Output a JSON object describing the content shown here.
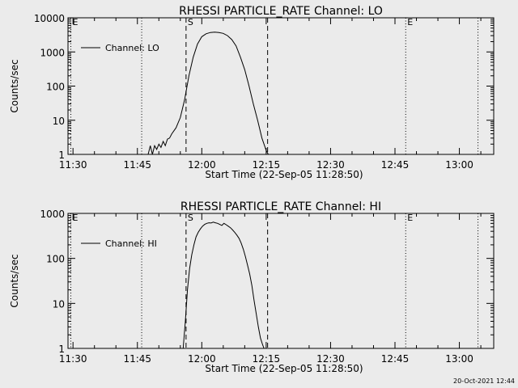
{
  "footer": {
    "timestamp": "20-Oct-2021 12:44"
  },
  "chart_data": [
    {
      "type": "line",
      "title": "RHESSI PARTICLE_RATE Channel: LO",
      "xlabel": "Start Time (22-Sep-05 11:28:50)",
      "ylabel": "Counts/sec",
      "y_scale": "log",
      "xlim": [
        "11:28:50",
        "13:08:00"
      ],
      "ylim": [
        1,
        10000
      ],
      "x_ticks": [
        "11:30",
        "11:45",
        "12:00",
        "12:15",
        "12:30",
        "12:45",
        "13:00"
      ],
      "y_ticks": [
        "1",
        "10",
        "100",
        "1000",
        "10000"
      ],
      "legend": {
        "placement": "top-left",
        "entries": [
          "Channel: LO"
        ]
      },
      "markers": [
        {
          "label": "E",
          "time": "11:29:30",
          "style": "dotted"
        },
        {
          "label": "",
          "time": "11:46:00",
          "style": "dotted"
        },
        {
          "label": "S",
          "time": "11:56:20",
          "style": "dashed"
        },
        {
          "label": "",
          "time": "12:15:20",
          "style": "dashed"
        },
        {
          "label": "E",
          "time": "12:47:30",
          "style": "dotted"
        },
        {
          "label": "",
          "time": "13:04:20",
          "style": "dotted"
        }
      ],
      "series": [
        {
          "name": "Channel: LO",
          "x": [
            "11:47:30",
            "11:48:00",
            "11:48:30",
            "11:49:00",
            "11:49:30",
            "11:50:00",
            "11:50:30",
            "11:51:00",
            "11:51:30",
            "11:52:00",
            "11:52:30",
            "11:53:00",
            "11:54:00",
            "11:55:00",
            "11:56:00",
            "11:57:00",
            "11:58:00",
            "11:59:00",
            "12:00:00",
            "12:01:00",
            "12:02:00",
            "12:03:00",
            "12:04:00",
            "12:05:00",
            "12:06:00",
            "12:07:00",
            "12:08:00",
            "12:09:00",
            "12:10:00",
            "12:11:00",
            "12:12:00",
            "12:13:00",
            "12:14:00",
            "12:15:00",
            "12:15:30"
          ],
          "y": [
            1,
            1.8,
            1,
            1.8,
            1.4,
            2,
            1.6,
            2.4,
            1.8,
            2.8,
            3,
            4,
            6,
            12,
            40,
            200,
            700,
            1700,
            2800,
            3400,
            3700,
            3800,
            3700,
            3500,
            3000,
            2300,
            1500,
            700,
            300,
            100,
            30,
            10,
            3,
            1.3,
            1
          ]
        }
      ]
    },
    {
      "type": "line",
      "title": "RHESSI PARTICLE_RATE Channel: HI",
      "xlabel": "Start Time (22-Sep-05 11:28:50)",
      "ylabel": "Counts/sec",
      "y_scale": "log",
      "xlim": [
        "11:28:50",
        "13:08:00"
      ],
      "ylim": [
        1,
        1000
      ],
      "x_ticks": [
        "11:30",
        "11:45",
        "12:00",
        "12:15",
        "12:30",
        "12:45",
        "13:00"
      ],
      "y_ticks": [
        "1",
        "10",
        "100",
        "1000"
      ],
      "legend": {
        "placement": "top-left",
        "entries": [
          "Channel: HI"
        ]
      },
      "markers": [
        {
          "label": "E",
          "time": "11:29:30",
          "style": "dotted"
        },
        {
          "label": "",
          "time": "11:46:00",
          "style": "dotted"
        },
        {
          "label": "S",
          "time": "11:56:20",
          "style": "dashed"
        },
        {
          "label": "",
          "time": "12:15:20",
          "style": "dashed"
        },
        {
          "label": "E",
          "time": "12:47:30",
          "style": "dotted"
        },
        {
          "label": "",
          "time": "13:04:20",
          "style": "dotted"
        }
      ],
      "series": [
        {
          "name": "Channel: HI",
          "x": [
            "11:55:40",
            "11:56:10",
            "11:56:40",
            "11:57:10",
            "11:57:40",
            "11:58:10",
            "11:58:40",
            "11:59:10",
            "11:59:40",
            "12:00:10",
            "12:00:40",
            "12:01:10",
            "12:01:40",
            "12:02:10",
            "12:02:40",
            "12:03:10",
            "12:03:40",
            "12:04:10",
            "12:04:40",
            "12:05:10",
            "12:05:40",
            "12:06:10",
            "12:06:40",
            "12:07:10",
            "12:07:40",
            "12:08:10",
            "12:08:40",
            "12:09:10",
            "12:09:40",
            "12:10:10",
            "12:10:40",
            "12:11:10",
            "12:11:40",
            "12:12:10",
            "12:12:40",
            "12:13:10",
            "12:13:40",
            "12:14:10",
            "12:14:30"
          ],
          "y": [
            1,
            4,
            20,
            60,
            120,
            200,
            300,
            380,
            450,
            520,
            570,
            600,
            620,
            610,
            640,
            620,
            600,
            570,
            540,
            600,
            560,
            520,
            480,
            430,
            380,
            330,
            280,
            220,
            160,
            110,
            70,
            45,
            25,
            12,
            6,
            3,
            1.7,
            1.2,
            1
          ]
        }
      ]
    }
  ]
}
